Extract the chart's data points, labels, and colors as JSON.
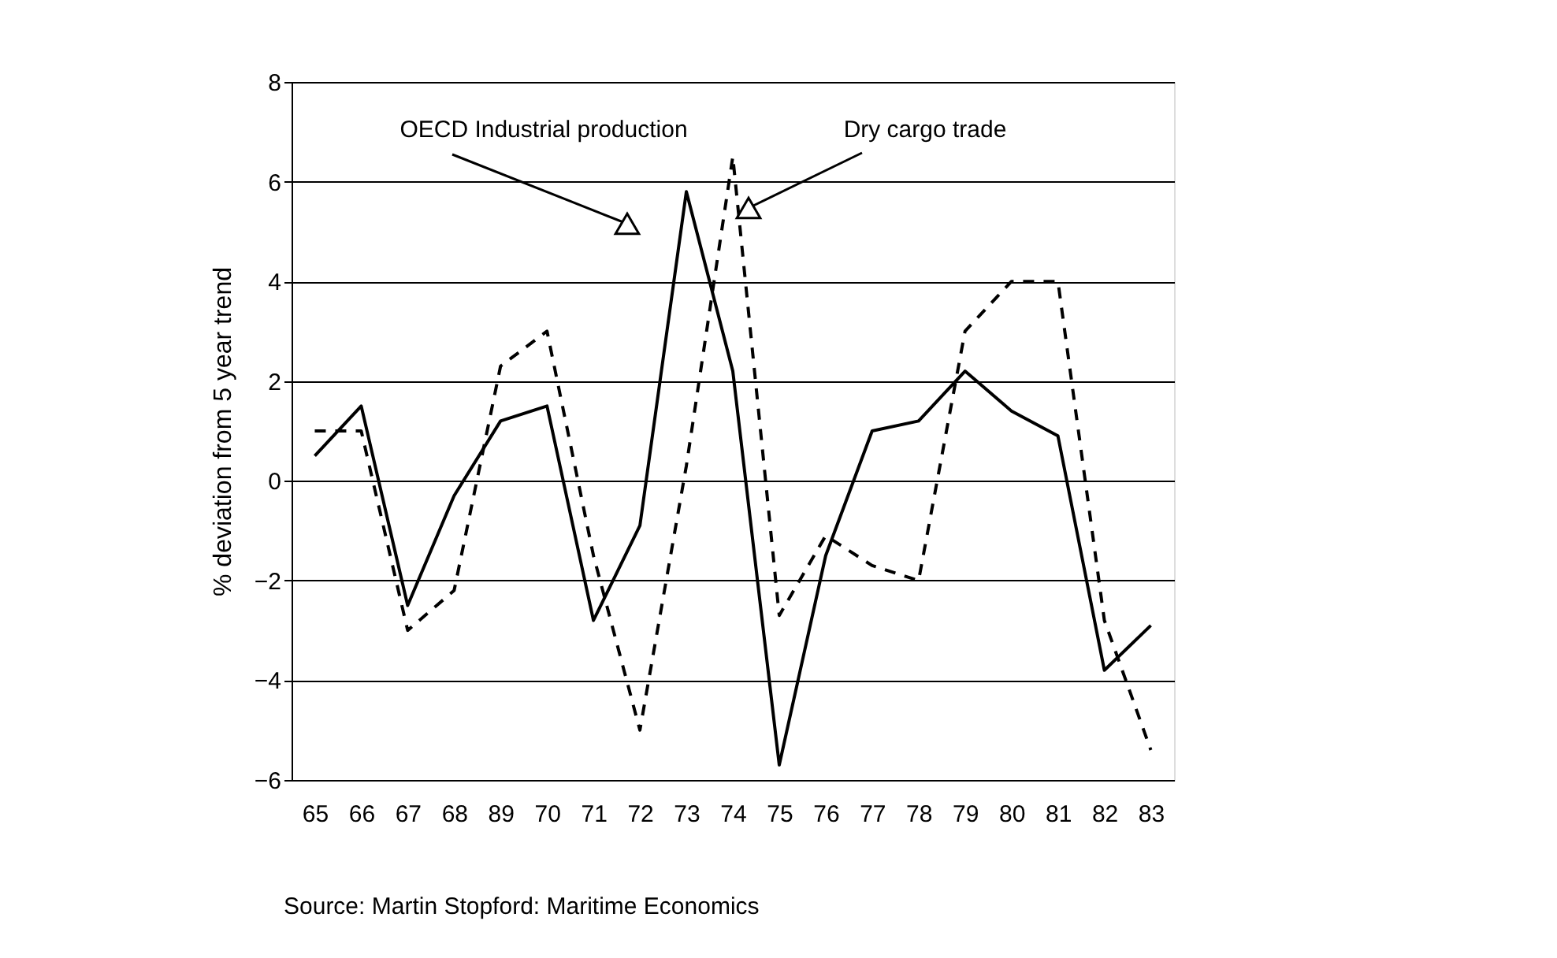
{
  "chart_data": {
    "type": "line",
    "ylabel": "% deviation from 5 year trend",
    "categories": [
      "65",
      "66",
      "67",
      "68",
      "89",
      "70",
      "71",
      "72",
      "73",
      "74",
      "75",
      "76",
      "77",
      "78",
      "79",
      "80",
      "81",
      "82",
      "83"
    ],
    "series": [
      {
        "name": "OECD Industrial production",
        "color": "#000000",
        "line_style": "solid",
        "values": [
          0.5,
          1.5,
          -2.5,
          -0.3,
          1.2,
          1.5,
          -2.8,
          -0.9,
          5.8,
          2.2,
          -5.7,
          -1.5,
          1.0,
          1.2,
          2.2,
          1.4,
          0.9,
          -3.8,
          -2.9
        ]
      },
      {
        "name": "Dry cargo trade",
        "color": "#000000",
        "line_style": "dashed",
        "values": [
          1.0,
          1.0,
          -3.0,
          -2.2,
          2.3,
          3.0,
          -1.5,
          -5.0,
          0.3,
          6.5,
          -2.7,
          -1.1,
          -1.7,
          -2.0,
          3.0,
          4.0,
          4.0,
          -2.8,
          -5.4
        ]
      }
    ],
    "ylim": [
      -6,
      8
    ],
    "yticks": [
      -6,
      -4,
      -2,
      0,
      2,
      4,
      6,
      8
    ],
    "grid": "y",
    "legend": false,
    "marker": "none",
    "annotations": [
      "Source: Martin Stopford: Maritime Economics"
    ]
  }
}
